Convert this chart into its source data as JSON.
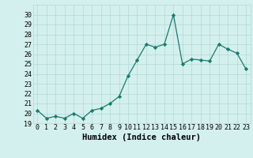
{
  "x": [
    0,
    1,
    2,
    3,
    4,
    5,
    6,
    7,
    8,
    9,
    10,
    11,
    12,
    13,
    14,
    15,
    16,
    17,
    18,
    19,
    20,
    21,
    22,
    23
  ],
  "y": [
    20.3,
    19.5,
    19.7,
    19.5,
    20.0,
    19.5,
    20.3,
    20.5,
    21.0,
    21.7,
    23.8,
    25.4,
    27.0,
    26.7,
    27.0,
    30.0,
    25.0,
    25.5,
    25.4,
    25.3,
    27.0,
    26.5,
    26.1,
    24.5
  ],
  "xlabel": "Humidex (Indice chaleur)",
  "ylim": [
    19,
    31
  ],
  "yticks": [
    19,
    20,
    21,
    22,
    23,
    24,
    25,
    26,
    27,
    28,
    29,
    30
  ],
  "xtick_labels": [
    "0",
    "1",
    "2",
    "3",
    "4",
    "5",
    "6",
    "7",
    "8",
    "9",
    "10",
    "11",
    "12",
    "13",
    "14",
    "15",
    "16",
    "17",
    "18",
    "19",
    "20",
    "21",
    "22",
    "23"
  ],
  "line_color": "#1a7a6e",
  "marker_color": "#1a7a6e",
  "bg_color": "#d4f0ee",
  "grid_color": "#b0d8d4",
  "xlabel_fontsize": 7.5,
  "tick_fontsize": 6.0
}
